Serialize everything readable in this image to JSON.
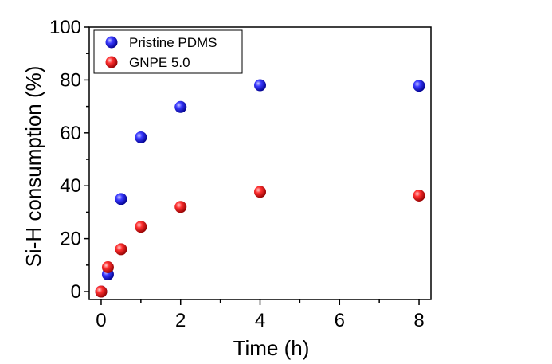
{
  "chart_data": {
    "type": "scatter",
    "xlabel": "Time (h)",
    "ylabel": "Si-H consumption (%)",
    "xlim": [
      -0.3,
      8.3
    ],
    "ylim": [
      -3,
      100
    ],
    "xticks": [
      0,
      2,
      4,
      6,
      8
    ],
    "yticks": [
      0,
      20,
      40,
      60,
      80,
      100
    ],
    "grid": false,
    "legend": "top-left",
    "series": [
      {
        "name": "Pristine PDMS",
        "color": "#1010e0",
        "points": [
          {
            "x": 0,
            "y": 0
          },
          {
            "x": 0.17,
            "y": 6.5
          },
          {
            "x": 0.5,
            "y": 35
          },
          {
            "x": 1,
            "y": 58.3
          },
          {
            "x": 2,
            "y": 69.8
          },
          {
            "x": 4,
            "y": 78
          },
          {
            "x": 8,
            "y": 77.8
          }
        ]
      },
      {
        "name": "GNPE 5.0",
        "color": "#e01010",
        "points": [
          {
            "x": 0,
            "y": 0
          },
          {
            "x": 0.17,
            "y": 9.2
          },
          {
            "x": 0.5,
            "y": 16
          },
          {
            "x": 1,
            "y": 24.5
          },
          {
            "x": 2,
            "y": 32
          },
          {
            "x": 4,
            "y": 37.7
          },
          {
            "x": 8,
            "y": 36.3
          }
        ]
      }
    ]
  }
}
